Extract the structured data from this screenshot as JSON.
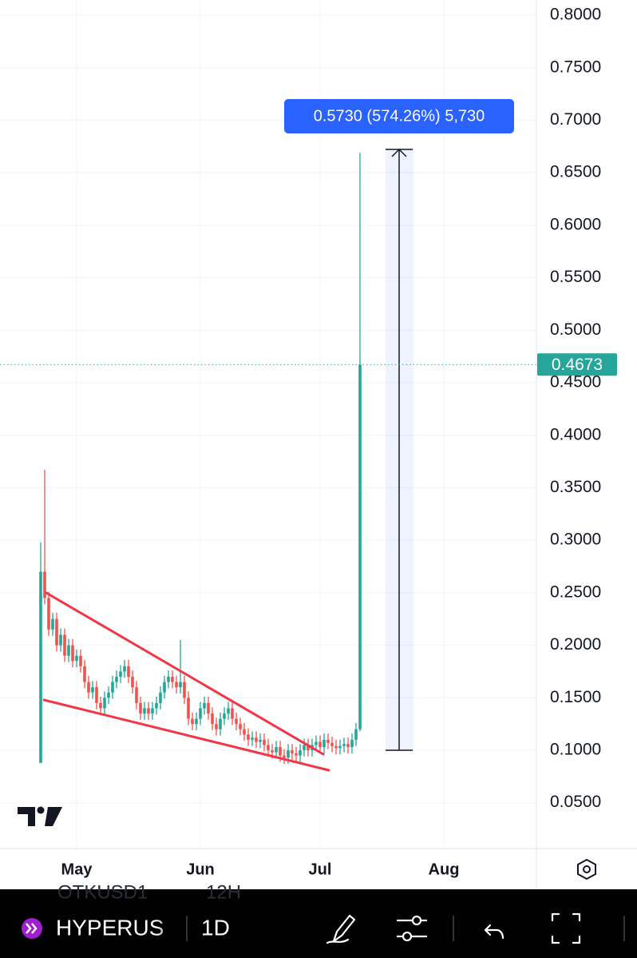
{
  "chart_data": {
    "type": "candlestick",
    "measure_label": "0.5730 (574.26%) 5,730",
    "ylim": [
      0.0064,
      0.8145
    ],
    "yticks": [
      {
        "value": 0.05,
        "label": "0.0500"
      },
      {
        "value": 0.1,
        "label": "0.1000"
      },
      {
        "value": 0.15,
        "label": "0.1500"
      },
      {
        "value": 0.2,
        "label": "0.2000"
      },
      {
        "value": 0.25,
        "label": "0.2500"
      },
      {
        "value": 0.3,
        "label": "0.3000"
      },
      {
        "value": 0.35,
        "label": "0.3500"
      },
      {
        "value": 0.4,
        "label": "0.4000"
      },
      {
        "value": 0.45,
        "label": "0.4500"
      },
      {
        "value": 0.5,
        "label": "0.5000"
      },
      {
        "value": 0.55,
        "label": "0.5500"
      },
      {
        "value": 0.6,
        "label": "0.6000"
      },
      {
        "value": 0.65,
        "label": "0.6500"
      },
      {
        "value": 0.7,
        "label": "0.7000"
      },
      {
        "value": 0.75,
        "label": "0.7500"
      },
      {
        "value": 0.8,
        "label": "0.8000"
      }
    ],
    "xlim": [
      -10.2,
      124.2
    ],
    "xticks": [
      {
        "value": 9,
        "label": "May"
      },
      {
        "value": 40,
        "label": "Jun"
      },
      {
        "value": 70,
        "label": "Jul"
      },
      {
        "value": 101,
        "label": "Aug"
      }
    ],
    "up_color": "#26a69a",
    "down_color": "#ef5350",
    "grid": true,
    "open": [
      0.088,
      0.27,
      0.245,
      0.215,
      0.225,
      0.2,
      0.21,
      0.19,
      0.2,
      0.185,
      0.19,
      0.18,
      0.165,
      0.155,
      0.16,
      0.145,
      0.14,
      0.15,
      0.155,
      0.165,
      0.17,
      0.175,
      0.18,
      0.17,
      0.16,
      0.145,
      0.135,
      0.14,
      0.135,
      0.14,
      0.145,
      0.155,
      0.165,
      0.17,
      0.165,
      0.16,
      0.165,
      0.15,
      0.13,
      0.125,
      0.13,
      0.14,
      0.145,
      0.135,
      0.125,
      0.12,
      0.13,
      0.135,
      0.14,
      0.13,
      0.125,
      0.12,
      0.115,
      0.11,
      0.112,
      0.108,
      0.11,
      0.105,
      0.1,
      0.098,
      0.103,
      0.095,
      0.093,
      0.1,
      0.097,
      0.095,
      0.1,
      0.105,
      0.1,
      0.105,
      0.108,
      0.103,
      0.11,
      0.107,
      0.104,
      0.102,
      0.104,
      0.106,
      0.103,
      0.11,
      0.12
    ],
    "high": [
      0.298,
      0.367,
      0.251,
      0.231,
      0.231,
      0.216,
      0.216,
      0.206,
      0.206,
      0.196,
      0.196,
      0.186,
      0.171,
      0.166,
      0.166,
      0.151,
      0.156,
      0.161,
      0.171,
      0.176,
      0.181,
      0.186,
      0.186,
      0.176,
      0.166,
      0.151,
      0.146,
      0.146,
      0.146,
      0.151,
      0.161,
      0.171,
      0.176,
      0.176,
      0.171,
      0.205,
      0.171,
      0.156,
      0.136,
      0.136,
      0.146,
      0.151,
      0.151,
      0.141,
      0.131,
      0.136,
      0.141,
      0.146,
      0.146,
      0.136,
      0.131,
      0.126,
      0.121,
      0.118,
      0.118,
      0.116,
      0.116,
      0.111,
      0.106,
      0.109,
      0.109,
      0.101,
      0.106,
      0.106,
      0.103,
      0.106,
      0.111,
      0.111,
      0.111,
      0.114,
      0.114,
      0.116,
      0.116,
      0.113,
      0.11,
      0.11,
      0.112,
      0.112,
      0.116,
      0.126,
      0.669
    ],
    "low": [
      0.088,
      0.239,
      0.209,
      0.209,
      0.194,
      0.194,
      0.184,
      0.184,
      0.179,
      0.179,
      0.174,
      0.159,
      0.149,
      0.149,
      0.139,
      0.134,
      0.134,
      0.144,
      0.149,
      0.159,
      0.164,
      0.169,
      0.164,
      0.154,
      0.139,
      0.129,
      0.129,
      0.129,
      0.129,
      0.134,
      0.139,
      0.149,
      0.159,
      0.159,
      0.154,
      0.154,
      0.144,
      0.124,
      0.119,
      0.119,
      0.124,
      0.134,
      0.129,
      0.119,
      0.114,
      0.114,
      0.124,
      0.129,
      0.124,
      0.119,
      0.114,
      0.109,
      0.104,
      0.104,
      0.102,
      0.102,
      0.099,
      0.094,
      0.092,
      0.092,
      0.089,
      0.087,
      0.087,
      0.091,
      0.089,
      0.089,
      0.094,
      0.094,
      0.094,
      0.099,
      0.097,
      0.097,
      0.101,
      0.098,
      0.096,
      0.096,
      0.098,
      0.097,
      0.097,
      0.104,
      0.118
    ],
    "close": [
      0.27,
      0.245,
      0.215,
      0.225,
      0.2,
      0.21,
      0.19,
      0.2,
      0.185,
      0.19,
      0.18,
      0.165,
      0.155,
      0.16,
      0.145,
      0.14,
      0.15,
      0.155,
      0.165,
      0.17,
      0.175,
      0.18,
      0.17,
      0.16,
      0.145,
      0.135,
      0.14,
      0.135,
      0.14,
      0.145,
      0.155,
      0.165,
      0.17,
      0.165,
      0.16,
      0.165,
      0.15,
      0.13,
      0.125,
      0.13,
      0.14,
      0.145,
      0.135,
      0.125,
      0.12,
      0.13,
      0.135,
      0.14,
      0.13,
      0.125,
      0.12,
      0.115,
      0.11,
      0.112,
      0.108,
      0.11,
      0.105,
      0.1,
      0.098,
      0.103,
      0.095,
      0.093,
      0.1,
      0.097,
      0.095,
      0.1,
      0.105,
      0.1,
      0.105,
      0.108,
      0.103,
      0.11,
      0.107,
      0.104,
      0.102,
      0.104,
      0.106,
      0.103,
      0.11,
      0.12,
      0.4673
    ]
  },
  "toolbar": {
    "symbol": "HYPERUS",
    "interval": "1D",
    "ghost_symbol": "OTKUSD1",
    "ghost_interval": "12H"
  }
}
